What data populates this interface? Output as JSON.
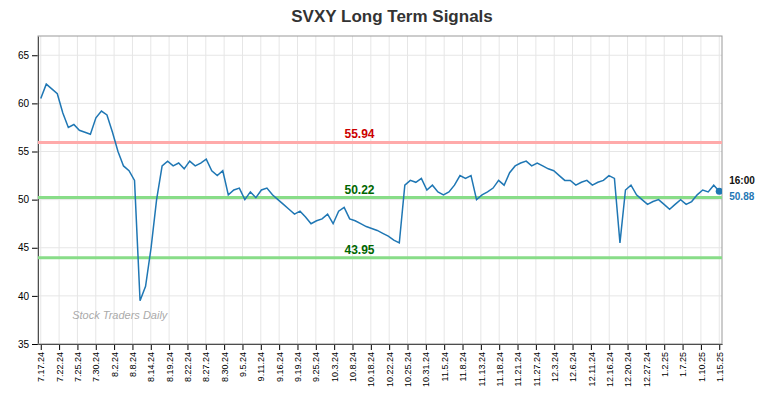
{
  "chart_data": {
    "type": "line",
    "title": "SVXY Long Term Signals",
    "x": [
      0,
      1,
      2,
      3,
      4,
      5,
      6,
      7,
      8,
      9,
      10,
      11,
      12,
      13,
      14,
      15,
      16,
      17,
      18,
      19,
      20,
      21,
      22,
      23,
      24,
      25,
      26,
      27,
      28,
      29,
      30,
      31,
      32,
      33,
      34,
      35,
      36,
      37,
      38,
      39,
      40,
      41,
      42,
      43,
      44,
      45,
      46,
      47,
      48,
      49,
      50,
      51,
      52,
      53,
      54,
      55,
      56,
      57,
      58,
      59,
      60,
      61,
      62,
      63,
      64,
      65,
      66,
      67,
      68,
      69,
      70,
      71,
      72,
      73,
      74,
      75,
      76,
      77,
      78,
      79,
      80,
      81,
      82,
      83,
      84,
      85,
      86,
      87,
      88,
      89,
      90,
      91,
      92,
      93,
      94,
      95,
      96,
      97,
      98,
      99,
      100,
      101,
      102,
      103,
      104,
      105,
      106,
      107,
      108,
      109,
      110,
      111,
      112,
      113,
      114,
      115,
      116,
      117,
      118,
      119,
      120,
      121,
      122,
      123
    ],
    "values": [
      60.5,
      62.0,
      61.5,
      61.0,
      59.0,
      57.5,
      57.8,
      57.2,
      57.0,
      56.8,
      58.5,
      59.2,
      58.8,
      57.0,
      55.0,
      53.5,
      53.0,
      52.0,
      39.5,
      41.0,
      45.0,
      50.0,
      53.5,
      54.0,
      53.5,
      53.8,
      53.2,
      54.0,
      53.5,
      53.8,
      54.2,
      53.0,
      52.5,
      53.0,
      50.5,
      51.0,
      51.2,
      50.0,
      50.8,
      50.2,
      51.0,
      51.2,
      50.5,
      50.0,
      49.5,
      49.0,
      48.5,
      48.8,
      48.2,
      47.5,
      47.8,
      48.0,
      48.5,
      47.5,
      48.8,
      49.2,
      48.0,
      47.8,
      47.5,
      47.2,
      47.0,
      46.8,
      46.5,
      46.2,
      45.8,
      45.5,
      51.5,
      52.0,
      51.8,
      52.2,
      51.0,
      51.5,
      50.8,
      50.5,
      50.8,
      51.5,
      52.5,
      52.2,
      52.5,
      50.0,
      50.5,
      50.8,
      51.2,
      52.0,
      51.5,
      52.8,
      53.5,
      53.8,
      54.0,
      53.5,
      53.8,
      53.5,
      53.2,
      53.0,
      52.5,
      52.0,
      52.0,
      51.5,
      51.8,
      52.0,
      51.5,
      51.8,
      52.0,
      52.5,
      52.2,
      45.5,
      51.0,
      51.5,
      50.5,
      50.0,
      49.5,
      49.8,
      50.0,
      49.5,
      49.0,
      49.5,
      50.0,
      49.5,
      49.8,
      50.5,
      51.0,
      50.8,
      51.5,
      50.88
    ],
    "xlim": [
      -0.5,
      123.5
    ],
    "xticks": [
      {
        "value": 0,
        "label": "7.17.24"
      },
      {
        "value": 3.324324,
        "label": "7.22.24"
      },
      {
        "value": 6.648649,
        "label": "7.25.24"
      },
      {
        "value": 9.972973,
        "label": "7.30.24"
      },
      {
        "value": 13.297297,
        "label": "8.2.24"
      },
      {
        "value": 16.621622,
        "label": "8.8.24"
      },
      {
        "value": 19.945946,
        "label": "8.14.24"
      },
      {
        "value": 23.27027,
        "label": "8.19.24"
      },
      {
        "value": 26.594595,
        "label": "8.22.24"
      },
      {
        "value": 29.918919,
        "label": "8.27.24"
      },
      {
        "value": 33.243243,
        "label": "8.30.24"
      },
      {
        "value": 36.567568,
        "label": "9.5.24"
      },
      {
        "value": 39.891892,
        "label": "9.11.24"
      },
      {
        "value": 43.216216,
        "label": "9.16.24"
      },
      {
        "value": 46.540541,
        "label": "9.19.24"
      },
      {
        "value": 49.864865,
        "label": "9.25.24"
      },
      {
        "value": 53.189189,
        "label": "10.3.24"
      },
      {
        "value": 56.513514,
        "label": "10.8.24"
      },
      {
        "value": 59.837838,
        "label": "10.18.24"
      },
      {
        "value": 63.162162,
        "label": "10.22.24"
      },
      {
        "value": 66.486486,
        "label": "10.25.24"
      },
      {
        "value": 69.810811,
        "label": "10.31.24"
      },
      {
        "value": 73.135135,
        "label": "11.5.24"
      },
      {
        "value": 76.459459,
        "label": "11.8.24"
      },
      {
        "value": 79.783784,
        "label": "11.13.24"
      },
      {
        "value": 83.108108,
        "label": "11.18.24"
      },
      {
        "value": 86.432432,
        "label": "11.21.24"
      },
      {
        "value": 89.756757,
        "label": "11.27.24"
      },
      {
        "value": 93.081081,
        "label": "12.3.24"
      },
      {
        "value": 96.405405,
        "label": "12.6.24"
      },
      {
        "value": 99.72973,
        "label": "12.11.24"
      },
      {
        "value": 103.054054,
        "label": "12.16.24"
      },
      {
        "value": 106.378378,
        "label": "12.20.24"
      },
      {
        "value": 109.702703,
        "label": "12.27.24"
      },
      {
        "value": 113.027027,
        "label": "1.2.25"
      },
      {
        "value": 116.351351,
        "label": "1.7.25"
      },
      {
        "value": 119.675676,
        "label": "1.10.25"
      },
      {
        "value": 123,
        "label": "1.15.25"
      }
    ],
    "ylim": [
      35,
      67
    ],
    "yticks": [
      35,
      40,
      45,
      50,
      55,
      60,
      65
    ],
    "grid": true,
    "marker": "last",
    "reference_lines": [
      {
        "value": 55.94,
        "label": "55.94",
        "color": "#ffaaaa",
        "label_color": "#cc0000"
      },
      {
        "value": 50.22,
        "label": "50.22",
        "color": "#88dd88",
        "label_color": "#006600"
      },
      {
        "value": 43.95,
        "label": "43.95",
        "color": "#88dd88",
        "label_color": "#006600"
      }
    ],
    "last_label": "16:00",
    "last_value": 50.88,
    "watermark": "Stock Traders Daily"
  }
}
